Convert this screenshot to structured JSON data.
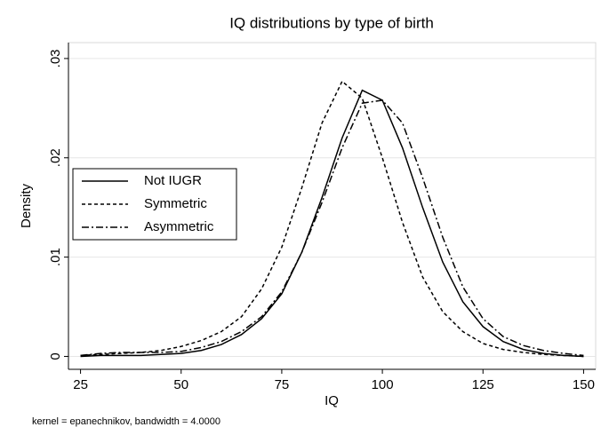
{
  "chart_data": {
    "type": "line",
    "title": "IQ distributions by type of birth",
    "x_label": "IQ",
    "y_label": "Density",
    "note": "kernel = epanechnikov, bandwidth = 4.0000",
    "x": [
      25,
      30,
      35,
      40,
      45,
      50,
      55,
      60,
      65,
      70,
      75,
      80,
      85,
      90,
      95,
      100,
      105,
      110,
      115,
      120,
      125,
      130,
      135,
      140,
      145,
      150
    ],
    "series": [
      {
        "name": "Not IUGR",
        "color": "#000000",
        "dash": "solid",
        "values": [
          0,
          0.0001,
          0.0001,
          0.0001,
          0.0002,
          0.0003,
          0.0006,
          0.0012,
          0.0022,
          0.0038,
          0.0063,
          0.0105,
          0.016,
          0.022,
          0.0268,
          0.0258,
          0.021,
          0.015,
          0.0095,
          0.0055,
          0.003,
          0.0015,
          0.0007,
          0.0003,
          0.0001,
          0
        ]
      },
      {
        "name": "Symmetric",
        "color": "#000000",
        "dash": "dashed",
        "values": [
          0.0001,
          0.0002,
          0.0003,
          0.0004,
          0.0006,
          0.001,
          0.0016,
          0.0025,
          0.004,
          0.0068,
          0.011,
          0.017,
          0.0235,
          0.0277,
          0.026,
          0.02,
          0.0135,
          0.008,
          0.0045,
          0.0025,
          0.0013,
          0.0007,
          0.0004,
          0.0002,
          0.0001,
          0
        ]
      },
      {
        "name": "Asymmetric",
        "color": "#000000",
        "dash": "dashdot",
        "values": [
          0.0001,
          0.0003,
          0.0004,
          0.0004,
          0.0004,
          0.0005,
          0.0009,
          0.0015,
          0.0025,
          0.004,
          0.0065,
          0.0105,
          0.0155,
          0.021,
          0.0255,
          0.0258,
          0.0235,
          0.018,
          0.012,
          0.007,
          0.0038,
          0.002,
          0.0011,
          0.0006,
          0.0003,
          0.0001
        ]
      }
    ],
    "xlim": [
      22,
      153
    ],
    "xticks": [
      25,
      50,
      75,
      100,
      125,
      150
    ],
    "ylim": [
      -0.0013,
      0.0316
    ],
    "yticks": [
      0,
      {
        "value": 0.01,
        "label": ".01"
      },
      {
        "value": 0.02,
        "label": ".02"
      },
      {
        "value": 0.03,
        "label": ".03"
      }
    ],
    "grid": true,
    "legend": "left"
  }
}
